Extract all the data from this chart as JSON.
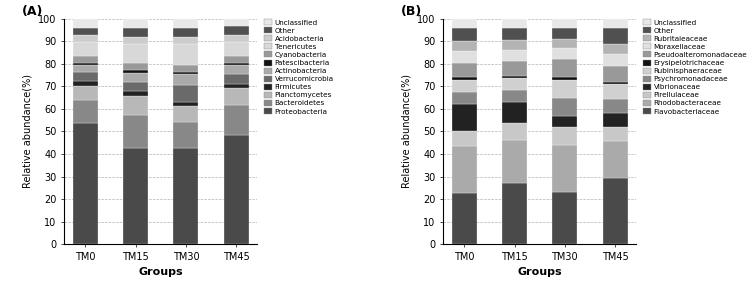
{
  "chart_A": {
    "groups": [
      "TM0",
      "TM15",
      "TM30",
      "TM45"
    ],
    "labels": [
      "Proteobacteria",
      "Bacteroidetes",
      "Planctomycetes",
      "Firmicutes",
      "Verrucomicrobia",
      "Actinobacteria",
      "Patescibacteria",
      "Cyanobacteria",
      "Tenericutes",
      "Acidobacteria",
      "Other",
      "Unclassified"
    ],
    "colors": [
      "#4a4a4a",
      "#888888",
      "#b8b8b8",
      "#222222",
      "#6a6a6a",
      "#aaaaaa",
      "#111111",
      "#999999",
      "#d8d8d8",
      "#cccccc",
      "#505050",
      "#e8e8e8"
    ],
    "data": {
      "Proteobacteria": [
        52,
        41,
        42,
        47
      ],
      "Bacteroidetes": [
        10,
        14,
        11,
        13
      ],
      "Planctomycetes": [
        6,
        8,
        7,
        7
      ],
      "Firmicutes": [
        2,
        2,
        2,
        2
      ],
      "Verrucomicrobia": [
        4,
        4,
        7,
        4
      ],
      "Actinobacteria": [
        3,
        4,
        5,
        4
      ],
      "Patescibacteria": [
        1,
        1,
        1,
        1
      ],
      "Cyanobacteria": [
        3,
        3,
        3,
        3
      ],
      "Tenericutes": [
        6,
        8,
        9,
        6
      ],
      "Acidobacteria": [
        3,
        3,
        3,
        3
      ],
      "Other": [
        3,
        4,
        4,
        4
      ],
      "Unclassified": [
        4,
        4,
        4,
        3
      ]
    }
  },
  "chart_B": {
    "groups": [
      "TM0",
      "TM15",
      "TM30",
      "TM45"
    ],
    "labels": [
      "Flavobacteriaceae",
      "Rhodobacteraceae",
      "Pirellulaceae",
      "Vibrionaceae",
      "Psychromonadaceae",
      "Rubinisphaeraceae",
      "Erysipelotrichaceae",
      "Pseudoalteromonadaceae",
      "Moraxellaceae",
      "Rubritaleaceae",
      "Other",
      "Unclassified"
    ],
    "colors": [
      "#4a4a4a",
      "#aaaaaa",
      "#c8c8c8",
      "#222222",
      "#888888",
      "#d0d0d0",
      "#111111",
      "#999999",
      "#e0e0e0",
      "#b4b4b4",
      "#505050",
      "#e8e8e8"
    ],
    "data": {
      "Flavobacteriaceae": [
        21,
        26,
        23,
        28
      ],
      "Rhodobacteraceae": [
        19,
        18,
        21,
        16
      ],
      "Pirellulaceae": [
        6,
        7,
        8,
        6
      ],
      "Vibrionaceae": [
        11,
        9,
        5,
        6
      ],
      "Psychromonadaceae": [
        5,
        5,
        8,
        6
      ],
      "Rubinisphaeraceae": [
        5,
        5,
        8,
        6
      ],
      "Erysipelotrichaceae": [
        1,
        1,
        1,
        1
      ],
      "Pseudoalteromonadaceae": [
        6,
        6,
        8,
        7
      ],
      "Moraxellaceae": [
        5,
        5,
        5,
        5
      ],
      "Rubritaleaceae": [
        4,
        4,
        4,
        4
      ],
      "Other": [
        5,
        5,
        5,
        7
      ],
      "Unclassified": [
        4,
        4,
        4,
        4
      ]
    }
  },
  "ylabel": "Relative abundance(%)",
  "xlabel": "Groups",
  "ylim": [
    0,
    100
  ],
  "yticks": [
    0,
    10,
    20,
    30,
    40,
    50,
    60,
    70,
    80,
    90,
    100
  ],
  "bar_width": 0.5,
  "label_A": "(A)",
  "label_B": "(B)"
}
